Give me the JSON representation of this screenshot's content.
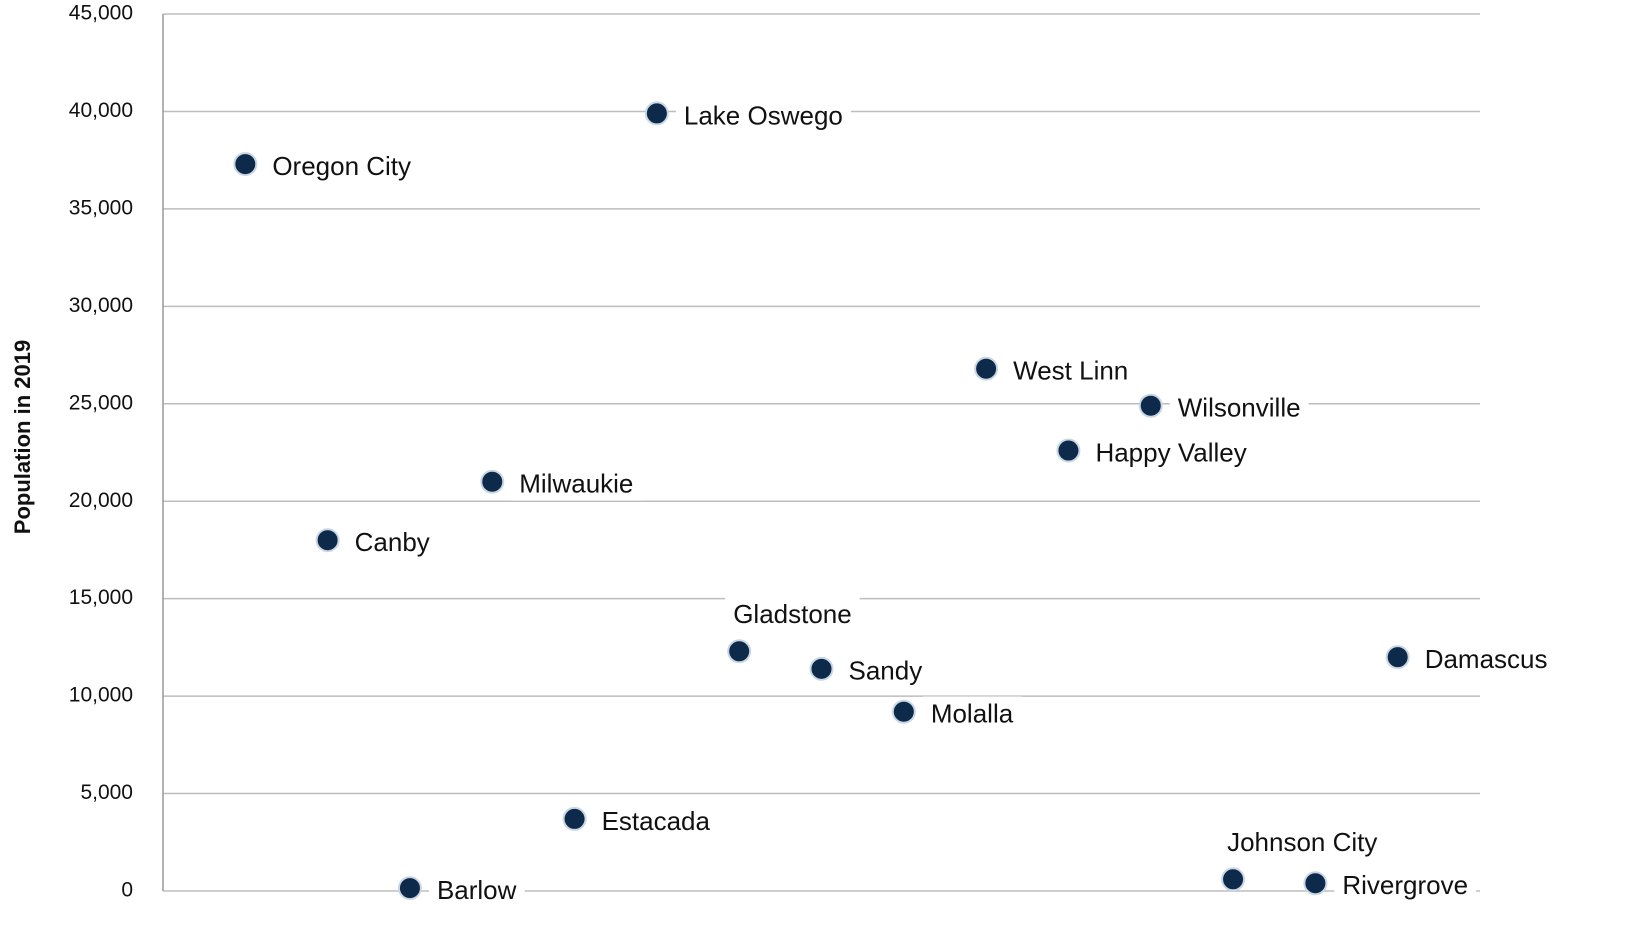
{
  "chart_data": {
    "type": "scatter",
    "y_label": "Population in 2019",
    "categories": [
      "Oregon City",
      "Canby",
      "Barlow",
      "Milwaukie",
      "Estacada",
      "Lake Oswego",
      "Gladstone",
      "Sandy",
      "Molalla",
      "West Linn",
      "Happy Valley",
      "Wilsonville",
      "Johnson City",
      "Rivergrove",
      "Damascus"
    ],
    "values": [
      37300,
      18000,
      150,
      21000,
      3700,
      39900,
      12300,
      11400,
      9200,
      26800,
      22600,
      24900,
      600,
      400,
      12000
    ],
    "color": "#0d2a4a",
    "ylim": [
      0,
      45000
    ],
    "yticks": [
      0,
      {
        "value": 5000,
        "label": "5,000"
      },
      {
        "value": 10000,
        "label": "10,000"
      },
      {
        "value": 15000,
        "label": "15,000"
      },
      {
        "value": 20000,
        "label": "20,000"
      },
      {
        "value": 25000,
        "label": "25,000"
      },
      {
        "value": 30000,
        "label": "30,000"
      },
      {
        "value": 35000,
        "label": "35,000"
      },
      {
        "value": 40000,
        "label": "40,000"
      },
      {
        "value": 45000,
        "label": "45,000"
      }
    ],
    "grid": true
  }
}
